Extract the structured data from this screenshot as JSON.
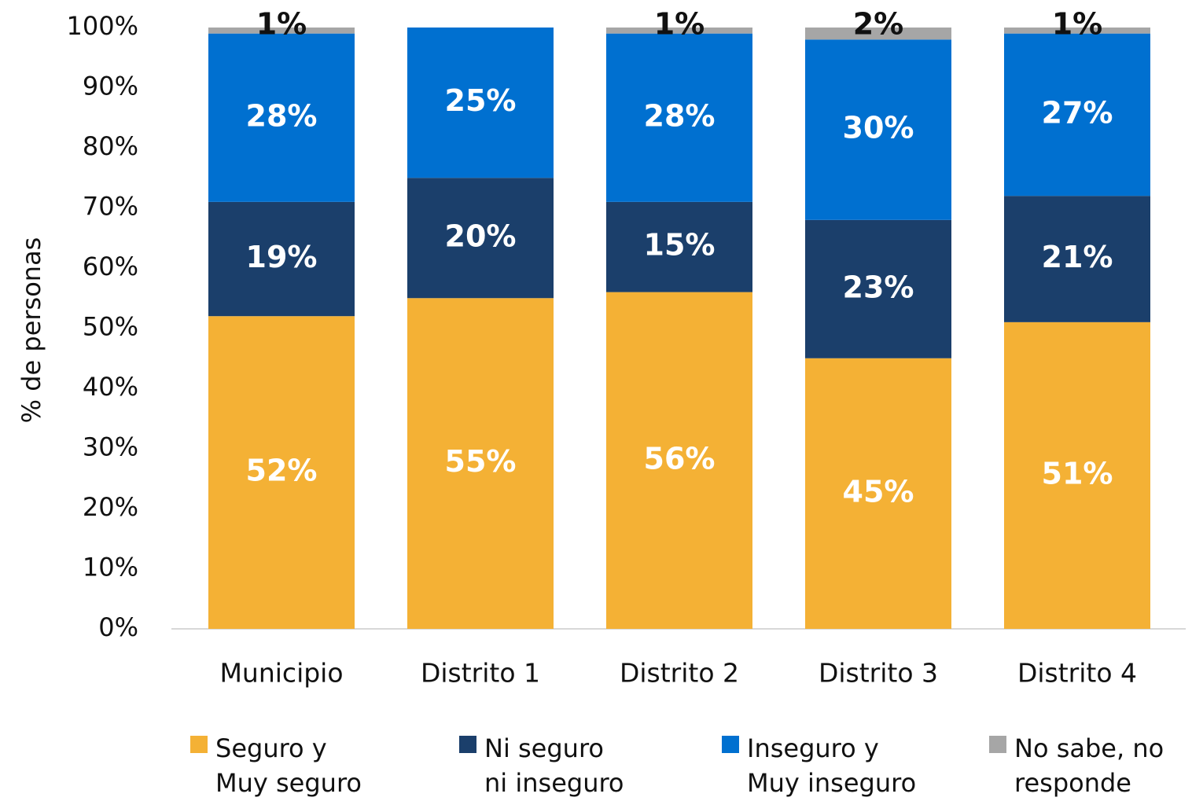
{
  "chart_data": {
    "type": "stacked_bar",
    "y_axis_label": "% de personas",
    "categories": [
      "Municipio",
      "Distrito 1",
      "Distrito 2",
      "Distrito 3",
      "Distrito 4"
    ],
    "series": [
      {
        "name": "Seguro y\nMuy seguro",
        "color": "#F4B135",
        "values": [
          52,
          55,
          56,
          45,
          51
        ],
        "value_labels": [
          "52%",
          "55%",
          "56%",
          "45%",
          "51%"
        ]
      },
      {
        "name": "Ni seguro\nni inseguro",
        "color": "#1B3F6B",
        "values": [
          19,
          20,
          15,
          23,
          21
        ],
        "value_labels": [
          "19%",
          "20%",
          "15%",
          "23%",
          "21%"
        ]
      },
      {
        "name": "Inseguro y\nMuy inseguro",
        "color": "#0070D0",
        "values": [
          28,
          25,
          28,
          30,
          27
        ],
        "value_labels": [
          "28%",
          "25%",
          "28%",
          "30%",
          "27%"
        ]
      },
      {
        "name": "No sabe, no\nresponde",
        "color": "#A6A6A6",
        "values": [
          1,
          null,
          1,
          2,
          1
        ],
        "value_labels": [
          "1%",
          null,
          "1%",
          "2%",
          "1%"
        ]
      }
    ],
    "ylim": [
      0,
      100
    ],
    "yticks": [
      {
        "value": 0,
        "label": "0%"
      },
      {
        "value": 10,
        "label": "10%"
      },
      {
        "value": 20,
        "label": "20%"
      },
      {
        "value": 30,
        "label": "30%"
      },
      {
        "value": 40,
        "label": "40%"
      },
      {
        "value": 50,
        "label": "50%"
      },
      {
        "value": 60,
        "label": "60%"
      },
      {
        "value": 70,
        "label": "70%"
      },
      {
        "value": 80,
        "label": "80%"
      },
      {
        "value": 90,
        "label": "90%"
      },
      {
        "value": 100,
        "label": "100%"
      }
    ],
    "legend": "bottom"
  }
}
